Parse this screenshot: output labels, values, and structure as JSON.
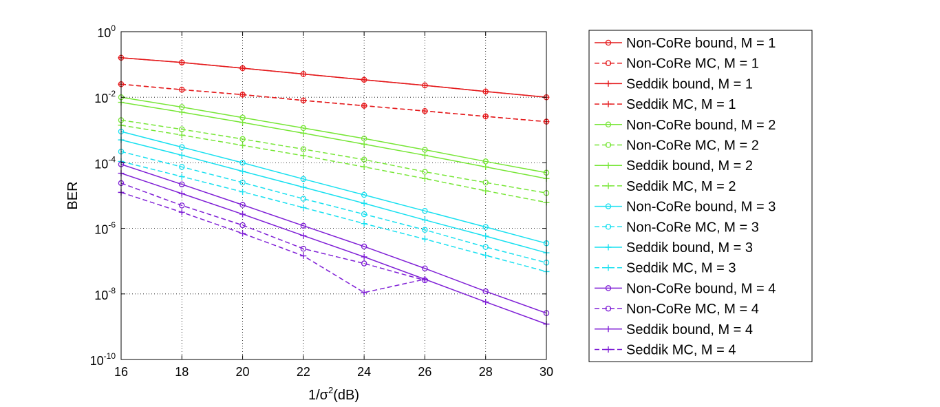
{
  "chart_data": {
    "type": "line",
    "title": "",
    "xlabel": {
      "prefix": "1/",
      "symbol": "σ",
      "power": "2",
      "suffix": "(dB)"
    },
    "ylabel": "BER",
    "x": [
      16,
      18,
      20,
      22,
      24,
      26,
      28,
      30
    ],
    "xlim": [
      16,
      30
    ],
    "ylim": [
      1e-10,
      1
    ],
    "yscale": "log",
    "grid": true,
    "legend_position": "outside-right",
    "x_ticks": [
      "16",
      "18",
      "20",
      "22",
      "24",
      "26",
      "28",
      "30"
    ],
    "y_ticks": [
      {
        "base": "10",
        "exp": "0"
      },
      {
        "base": "10",
        "exp": "-2"
      },
      {
        "base": "10",
        "exp": "-4"
      },
      {
        "base": "10",
        "exp": "-6"
      },
      {
        "base": "10",
        "exp": "-8"
      },
      {
        "base": "10",
        "exp": "-10"
      }
    ],
    "colors": {
      "M1": "#e41a1c",
      "M2": "#77e636",
      "M3": "#19e0f0",
      "M4": "#7f1fd6"
    },
    "series": [
      {
        "name": "Non-CoRe bound, M = 1",
        "color": "#e41a1c",
        "dash": "solid",
        "marker": "circle",
        "y": [
          0.16,
          0.115,
          0.077,
          0.051,
          0.034,
          0.023,
          0.015,
          0.01
        ]
      },
      {
        "name": "Non-CoRe MC, M = 1",
        "color": "#e41a1c",
        "dash": "dashed",
        "marker": "circle",
        "y": [
          0.025,
          0.017,
          0.012,
          0.008,
          0.0055,
          0.0038,
          0.0026,
          0.0018
        ]
      },
      {
        "name": "Seddik bound, M = 1",
        "color": "#e41a1c",
        "dash": "solid",
        "marker": "plus",
        "y": [
          0.16,
          0.115,
          0.077,
          0.051,
          0.034,
          0.023,
          0.015,
          0.01
        ]
      },
      {
        "name": "Seddik MC, M = 1",
        "color": "#e41a1c",
        "dash": "dashed",
        "marker": "plus",
        "y": [
          0.025,
          0.017,
          0.012,
          0.008,
          0.0055,
          0.0038,
          0.0026,
          0.0018
        ]
      },
      {
        "name": "Non-CoRe bound, M = 2",
        "color": "#77e636",
        "dash": "solid",
        "marker": "circle",
        "y": [
          0.01,
          0.005,
          0.0024,
          0.00115,
          0.00055,
          0.00025,
          0.00011,
          5e-05
        ]
      },
      {
        "name": "Non-CoRe MC, M = 2",
        "color": "#77e636",
        "dash": "dashed",
        "marker": "circle",
        "y": [
          0.002,
          0.00105,
          0.00053,
          0.00026,
          0.000125,
          5.3e-05,
          2.5e-05,
          1.2e-05
        ]
      },
      {
        "name": "Seddik bound, M = 2",
        "color": "#77e636",
        "dash": "solid",
        "marker": "plus",
        "y": [
          0.007,
          0.0035,
          0.0017,
          0.0008,
          0.00037,
          0.00017,
          7.5e-05,
          3.3e-05
        ]
      },
      {
        "name": "Seddik MC, M = 2",
        "color": "#77e636",
        "dash": "dashed",
        "marker": "plus",
        "y": [
          0.0014,
          0.0007,
          0.00034,
          0.000165,
          7.5e-05,
          3.3e-05,
          1.4e-05,
          6.2e-06
        ]
      },
      {
        "name": "Non-CoRe bound, M = 3",
        "color": "#19e0f0",
        "dash": "solid",
        "marker": "circle",
        "y": [
          0.0009,
          0.0003,
          0.0001,
          3.2e-05,
          1.05e-05,
          3.4e-06,
          1.1e-06,
          3.5e-07
        ]
      },
      {
        "name": "Non-CoRe MC, M = 3",
        "color": "#19e0f0",
        "dash": "dashed",
        "marker": "circle",
        "y": [
          0.00022,
          7.5e-05,
          2.5e-05,
          8e-06,
          2.7e-06,
          9e-07,
          2.7e-07,
          9e-08
        ]
      },
      {
        "name": "Seddik bound, M = 3",
        "color": "#19e0f0",
        "dash": "solid",
        "marker": "plus",
        "y": [
          0.0005,
          0.00017,
          5.5e-05,
          1.8e-05,
          5.8e-06,
          1.8e-06,
          5.8e-07,
          1.8e-07
        ]
      },
      {
        "name": "Seddik MC, M = 3",
        "color": "#19e0f0",
        "dash": "dashed",
        "marker": "plus",
        "y": [
          0.00011,
          3.8e-05,
          1.3e-05,
          4.3e-06,
          1.4e-06,
          4.7e-07,
          1.5e-07,
          4.8e-08
        ]
      },
      {
        "name": "Non-CoRe bound, M = 4",
        "color": "#7f1fd6",
        "dash": "solid",
        "marker": "circle",
        "y": [
          9e-05,
          2.2e-05,
          5.2e-06,
          1.2e-06,
          2.8e-07,
          6e-08,
          1.2e-08,
          2.6e-09
        ]
      },
      {
        "name": "Non-CoRe MC, M = 4",
        "color": "#7f1fd6",
        "dash": "dashed",
        "marker": "circle",
        "y": [
          2.4e-05,
          5e-06,
          1.25e-06,
          2.4e-07,
          8.5e-08,
          2.6e-08,
          null,
          null
        ]
      },
      {
        "name": "Seddik bound, M = 4",
        "color": "#7f1fd6",
        "dash": "solid",
        "marker": "plus",
        "y": [
          4.8e-05,
          1.15e-05,
          2.7e-06,
          6e-07,
          1.35e-07,
          2.8e-08,
          5.7e-09,
          1.2e-09
        ]
      },
      {
        "name": "Seddik MC, M = 4",
        "color": "#7f1fd6",
        "dash": "dashed",
        "marker": "plus",
        "y": [
          1.25e-05,
          3.1e-06,
          7e-07,
          1.45e-07,
          1.1e-08,
          2.8e-08,
          null,
          null
        ]
      }
    ]
  }
}
